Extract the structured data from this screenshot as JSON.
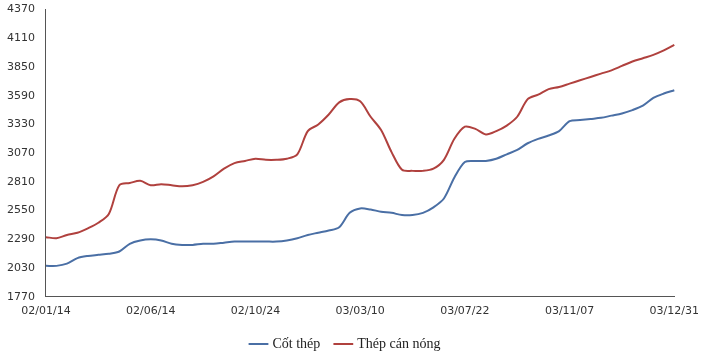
{
  "chart_data": {
    "type": "line",
    "categories": [
      "02/01/14",
      null,
      null,
      null,
      null,
      null,
      null,
      null,
      null,
      null,
      "02/06/14",
      null,
      null,
      null,
      null,
      null,
      null,
      null,
      null,
      null,
      "02/10/24",
      null,
      null,
      null,
      null,
      null,
      null,
      null,
      null,
      null,
      "03/03/10",
      null,
      null,
      null,
      null,
      null,
      null,
      null,
      null,
      null,
      "03/07/22",
      null,
      null,
      null,
      null,
      null,
      null,
      null,
      null,
      null,
      "03/11/07",
      null,
      null,
      null,
      null,
      null,
      null,
      null,
      null,
      null,
      "03/12/31"
    ],
    "series": [
      {
        "name": "Cốt thép",
        "color": "#4a6fa5",
        "values": [
          2050,
          2050,
          2070,
          2120,
          2140,
          2150,
          2160,
          2180,
          2250,
          2280,
          2290,
          2280,
          2250,
          2240,
          2240,
          2250,
          2250,
          2260,
          2270,
          2270,
          2270,
          2270,
          2270,
          2280,
          2300,
          2330,
          2350,
          2370,
          2400,
          2530,
          2570,
          2560,
          2540,
          2530,
          2510,
          2510,
          2530,
          2580,
          2660,
          2850,
          2990,
          3000,
          3000,
          3020,
          3060,
          3100,
          3160,
          3200,
          3230,
          3270,
          3360,
          3370,
          3380,
          3390,
          3410,
          3430,
          3460,
          3500,
          3570,
          3610,
          3640
        ]
      },
      {
        "name": "Thép cán nóng",
        "color": "#b0413e",
        "values": [
          2310,
          2300,
          2330,
          2350,
          2390,
          2440,
          2520,
          2780,
          2800,
          2820,
          2780,
          2790,
          2780,
          2770,
          2780,
          2810,
          2860,
          2930,
          2980,
          3000,
          3020,
          3010,
          3010,
          3020,
          3060,
          3270,
          3330,
          3420,
          3530,
          3560,
          3540,
          3400,
          3280,
          3080,
          2920,
          2910,
          2910,
          2930,
          3010,
          3200,
          3310,
          3290,
          3240,
          3270,
          3320,
          3400,
          3560,
          3600,
          3650,
          3670,
          3700,
          3730,
          3760,
          3790,
          3820,
          3860,
          3900,
          3930,
          3960,
          4000,
          4050
        ]
      }
    ],
    "ylim": [
      1770,
      4370
    ],
    "yticks": [
      1770,
      2030,
      2290,
      2550,
      2810,
      3070,
      3330,
      3590,
      3850,
      4110,
      4370
    ],
    "grid": false,
    "legend": "bottom"
  }
}
